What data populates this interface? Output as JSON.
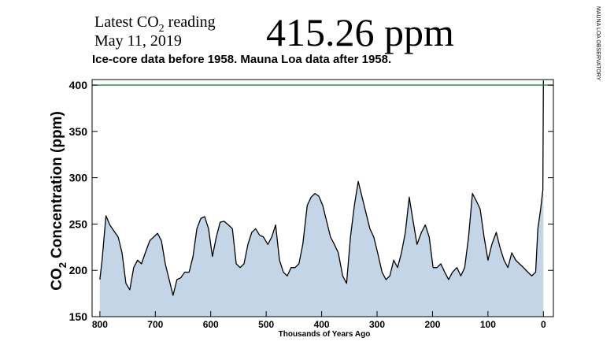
{
  "chart_data": {
    "type": "area",
    "title": {
      "text": "Latest CO",
      "subscript": "2",
      "suffix": "reading"
    },
    "date": "May 11, 2019",
    "reading": "415.26 ppm",
    "reading_color": "#26a033",
    "subtitle": "Ice-core data before 1958. Mauna Loa data after 1958.",
    "credit": "MAUNA LOA OBSERVATORY",
    "x_label": "Thousands of Years Ago",
    "y_label": {
      "text": "CO",
      "subscript": "2",
      "suffix": "Concentration (ppm)"
    },
    "xlim": [
      814,
      -18
    ],
    "xticks": [
      800,
      700,
      600,
      500,
      400,
      300,
      200,
      100,
      0
    ],
    "ylim": [
      150,
      406
    ],
    "yticks": [
      150,
      200,
      250,
      300,
      350,
      400
    ],
    "reference_line": {
      "value": 400,
      "color": "#1f8a3a"
    },
    "series": [
      {
        "color": "#000000",
        "fill": "#c5d5e8",
        "x": [
          800,
          796,
          789,
          782,
          774,
          767,
          760,
          753,
          746,
          739,
          732,
          725,
          718,
          710,
          703,
          696,
          689,
          682,
          675,
          668,
          661,
          654,
          647,
          639,
          632,
          625,
          618,
          611,
          604,
          597,
          590,
          583,
          576,
          568,
          561,
          554,
          547,
          540,
          533,
          526,
          519,
          512,
          505,
          497,
          490,
          483,
          476,
          469,
          462,
          455,
          448,
          441,
          434,
          426,
          419,
          412,
          405,
          398,
          391,
          384,
          377,
          370,
          362,
          355,
          348,
          341,
          334,
          327,
          320,
          313,
          306,
          299,
          291,
          284,
          277,
          270,
          263,
          256,
          249,
          242,
          235,
          228,
          220,
          213,
          206,
          199,
          192,
          185,
          178,
          171,
          164,
          156,
          149,
          142,
          135,
          128,
          121,
          114,
          107,
          100,
          93,
          85,
          78,
          71,
          64,
          57,
          50,
          43,
          36,
          28,
          21,
          14,
          10,
          5,
          1,
          0
        ],
        "values": [
          190,
          211,
          259,
          249,
          242,
          236,
          219,
          186,
          179,
          203,
          211,
          207,
          219,
          232,
          236,
          240,
          232,
          207,
          190,
          173,
          190,
          192,
          198,
          198,
          215,
          245,
          256,
          258,
          245,
          215,
          236,
          252,
          253,
          249,
          245,
          207,
          203,
          207,
          228,
          241,
          245,
          238,
          236,
          228,
          236,
          249,
          211,
          198,
          194,
          203,
          203,
          207,
          228,
          270,
          279,
          283,
          280,
          270,
          253,
          236,
          228,
          219,
          194,
          186,
          236,
          270,
          296,
          279,
          262,
          245,
          236,
          219,
          198,
          190,
          194,
          211,
          203,
          219,
          241,
          279,
          253,
          228,
          241,
          249,
          236,
          203,
          203,
          207,
          198,
          190,
          198,
          203,
          194,
          203,
          236,
          283,
          275,
          266,
          236,
          211,
          228,
          241,
          224,
          211,
          203,
          219,
          211,
          207,
          203,
          198,
          194,
          198,
          245,
          266,
          287,
          405
        ]
      }
    ]
  }
}
